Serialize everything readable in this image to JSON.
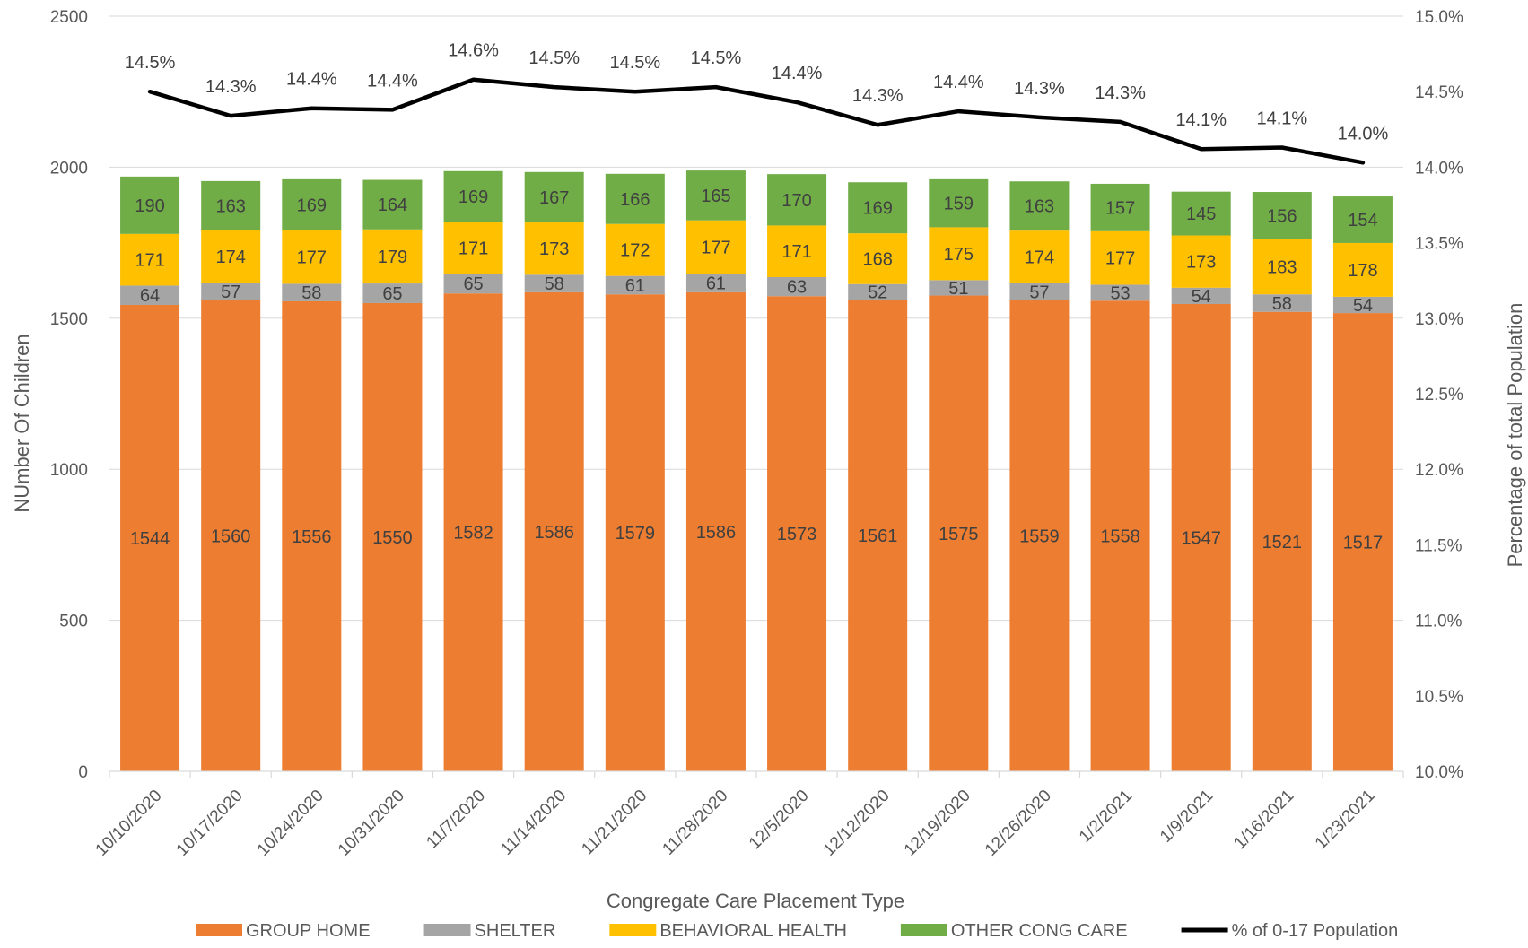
{
  "chart_data": {
    "type": "bar",
    "stacked": true,
    "categories": [
      "10/10/2020",
      "10/17/2020",
      "10/24/2020",
      "10/31/2020",
      "11/7/2020",
      "11/14/2020",
      "11/21/2020",
      "11/28/2020",
      "12/5/2020",
      "12/12/2020",
      "12/19/2020",
      "12/26/2020",
      "1/2/2021",
      "1/9/2021",
      "1/16/2021",
      "1/23/2021"
    ],
    "series": [
      {
        "name": "GROUP HOME",
        "color": "#ED7D31",
        "values": [
          1544,
          1560,
          1556,
          1550,
          1582,
          1586,
          1579,
          1586,
          1573,
          1561,
          1575,
          1559,
          1558,
          1547,
          1521,
          1517
        ]
      },
      {
        "name": "SHELTER",
        "color": "#A5A5A5",
        "values": [
          64,
          57,
          58,
          65,
          65,
          58,
          61,
          61,
          63,
          52,
          51,
          57,
          53,
          54,
          58,
          54
        ]
      },
      {
        "name": "BEHAVIORAL HEALTH",
        "color": "#FFC000",
        "values": [
          171,
          174,
          177,
          179,
          171,
          173,
          172,
          177,
          171,
          168,
          175,
          174,
          177,
          173,
          183,
          178
        ]
      },
      {
        "name": "OTHER CONG CARE",
        "color": "#70AD47",
        "values": [
          190,
          163,
          169,
          164,
          169,
          167,
          166,
          165,
          170,
          169,
          159,
          163,
          157,
          145,
          156,
          154
        ]
      }
    ],
    "line_series": {
      "name": "% of 0-17 Population",
      "color": "#000000",
      "values": [
        14.5,
        14.34,
        14.39,
        14.38,
        14.58,
        14.53,
        14.5,
        14.53,
        14.43,
        14.28,
        14.37,
        14.33,
        14.3,
        14.12,
        14.13,
        14.03
      ],
      "labels": [
        "14.5%",
        "14.3%",
        "14.4%",
        "14.4%",
        "14.6%",
        "14.5%",
        "14.5%",
        "14.5%",
        "14.4%",
        "14.3%",
        "14.4%",
        "14.3%",
        "14.3%",
        "14.1%",
        "14.1%",
        "14.0%"
      ]
    },
    "xlabel": "Congregate Care Placement Type",
    "ylabel": "NUmber Of Children",
    "y2label": "Percentage of total Population",
    "ylim": [
      0,
      2500
    ],
    "yticks": [
      0,
      500,
      1000,
      1500,
      2000,
      2500
    ],
    "ytick_labels": [
      "0",
      "500",
      "1000",
      "1500",
      "2000",
      "2500"
    ],
    "y2lim": [
      10.0,
      15.0
    ],
    "y2ticks": [
      10.0,
      10.5,
      11.0,
      11.5,
      12.0,
      12.5,
      13.0,
      13.5,
      14.0,
      14.5,
      15.0
    ],
    "y2tick_labels": [
      "10.0%",
      "10.5%",
      "11.0%",
      "11.5%",
      "12.0%",
      "12.5%",
      "13.0%",
      "13.5%",
      "14.0%",
      "14.5%",
      "15.0%"
    ],
    "grid": true,
    "legend_position": "bottom"
  }
}
